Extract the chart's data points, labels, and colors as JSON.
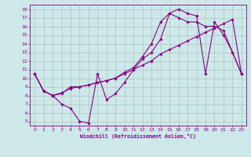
{
  "xlabel": "Windchill (Refroidissement éolien,°C)",
  "bg_color": "#cce8e8",
  "line_color": "#880088",
  "grid_color": "#aabbbb",
  "xlim": [
    -0.5,
    23.5
  ],
  "ylim": [
    4.5,
    18.5
  ],
  "xticks": [
    0,
    1,
    2,
    3,
    4,
    5,
    6,
    7,
    8,
    9,
    10,
    11,
    12,
    13,
    14,
    15,
    16,
    17,
    18,
    19,
    20,
    21,
    22,
    23
  ],
  "yticks": [
    5,
    6,
    7,
    8,
    9,
    10,
    11,
    12,
    13,
    14,
    15,
    16,
    17,
    18
  ],
  "series": [
    {
      "x": [
        0,
        1,
        2,
        3,
        4,
        5,
        6,
        7,
        8,
        9,
        10,
        11,
        12,
        13,
        14,
        15,
        16,
        17,
        18,
        19,
        20,
        21,
        22,
        23
      ],
      "y": [
        10.5,
        8.5,
        8.0,
        7.0,
        6.5,
        5.0,
        4.8,
        10.5,
        7.5,
        8.2,
        9.5,
        11.0,
        12.2,
        13.0,
        14.5,
        17.5,
        18.0,
        17.5,
        17.2,
        10.5,
        16.5,
        15.0,
        13.0,
        10.5
      ]
    },
    {
      "x": [
        0,
        1,
        2,
        3,
        4,
        5,
        6,
        7,
        8,
        9,
        10,
        11,
        12,
        13,
        14,
        15,
        16,
        17,
        18,
        19,
        20,
        21,
        22,
        23
      ],
      "y": [
        10.5,
        8.5,
        8.0,
        8.3,
        8.8,
        9.0,
        9.2,
        9.5,
        9.7,
        10.0,
        10.5,
        11.0,
        11.5,
        12.0,
        12.8,
        13.3,
        13.8,
        14.3,
        14.8,
        15.3,
        15.8,
        16.3,
        16.8,
        10.5
      ]
    },
    {
      "x": [
        0,
        1,
        2,
        3,
        4,
        5,
        6,
        7,
        8,
        9,
        10,
        11,
        12,
        13,
        14,
        15,
        16,
        17,
        18,
        19,
        20,
        21,
        22,
        23
      ],
      "y": [
        10.5,
        8.5,
        8.0,
        8.2,
        9.0,
        9.0,
        9.2,
        9.5,
        9.7,
        10.0,
        10.7,
        11.2,
        12.5,
        14.0,
        16.5,
        17.5,
        17.0,
        16.5,
        16.5,
        16.0,
        16.0,
        15.5,
        13.0,
        10.5
      ]
    }
  ]
}
